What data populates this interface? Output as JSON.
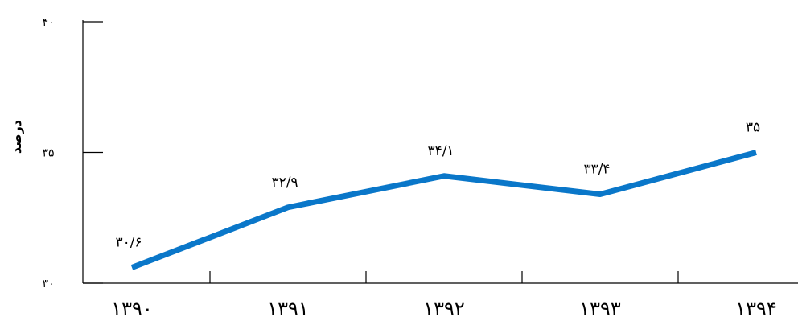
{
  "chart_data": {
    "type": "line",
    "title": "",
    "xlabel": "",
    "ylabel": "درصد",
    "categories": [
      "۱۳۹۰",
      "۱۳۹۱",
      "۱۳۹۲",
      "۱۳۹۳",
      "۱۳۹۴"
    ],
    "series": [
      {
        "values": [
          30.6,
          32.9,
          34.1,
          33.4,
          35
        ],
        "value_labels": [
          "۳۰/۶",
          "۳۲/۹",
          "۳۴/۱",
          "۳۳/۴",
          "۳۵"
        ],
        "color": "#0a77c9"
      }
    ],
    "ylim": [
      30,
      40
    ],
    "yticks": [
      30,
      35,
      40
    ],
    "ytick_labels": [
      "۳۰",
      "۳۵",
      "۴۰"
    ],
    "grid": false,
    "legend": "none"
  }
}
